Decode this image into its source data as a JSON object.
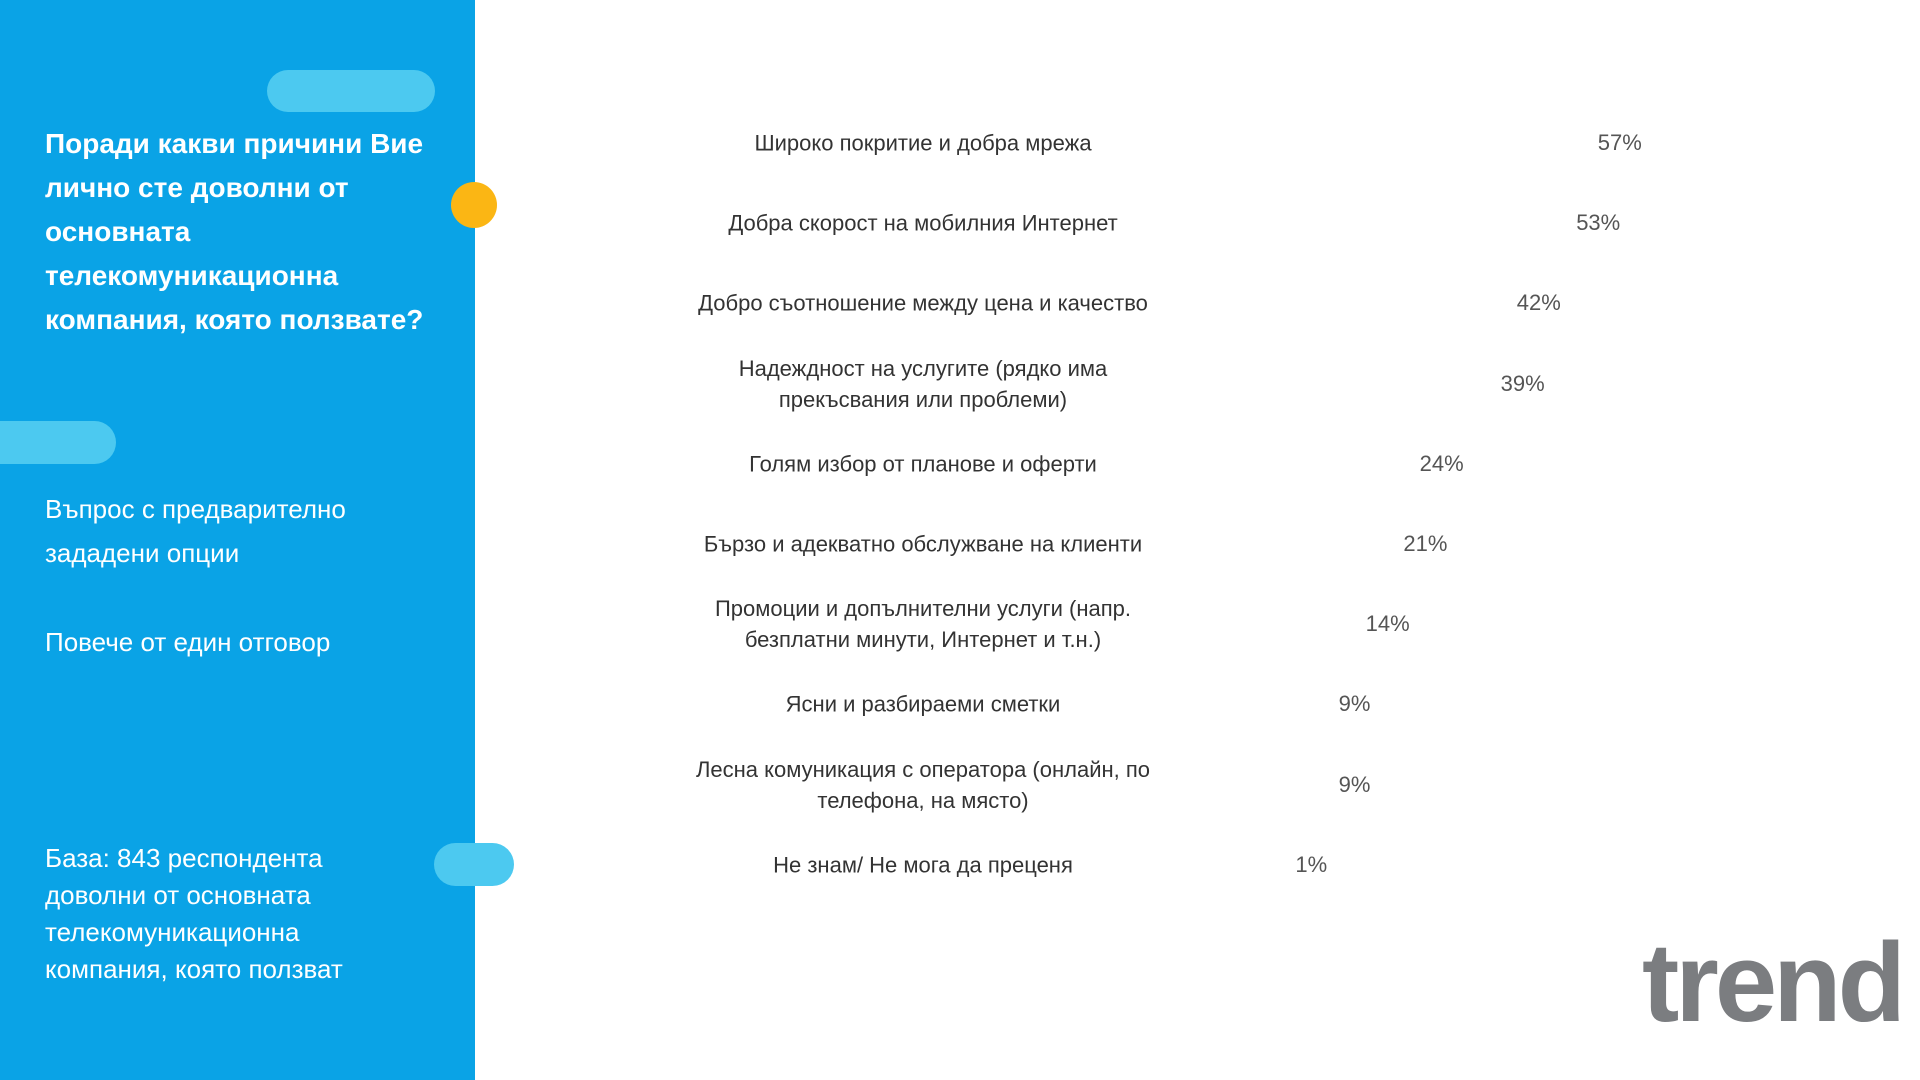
{
  "sidebar": {
    "question": "Поради какви причини Вие лично сте доволни от основната телекомуникационна компания, която ползвате?",
    "note1": "Въпрос с предварително зададени опции",
    "note2": "Повече от един отговор",
    "base": "База:  843 респондента доволни от основната телекомуникационна компания, която ползват"
  },
  "logo": "trend",
  "chart_data": {
    "type": "bar",
    "orientation": "horizontal",
    "color": "#2fb2e2",
    "categories": [
      "Широко покритие и добра мрежа",
      "Добра скорост на мобилния Интернет",
      "Добро съотношение между цена и качество",
      "Надеждност на услугите (рядко има прекъсвания или проблеми)",
      "Голям избор от планове и оферти",
      "Бързо и адекватно обслужване на клиенти",
      "Промоции и допълнителни услуги (напр. безплатни минути, Интернет и т.н.)",
      "Ясни и разбираеми сметки",
      "Лесна комуникация с оператора (онлайн, по телефона, на място)",
      "Не знам/ Не мога да преценя"
    ],
    "values": [
      57,
      53,
      42,
      39,
      24,
      21,
      14,
      9,
      9,
      1
    ],
    "value_labels": [
      "57%",
      "53%",
      "42%",
      "39%",
      "24%",
      "21%",
      "14%",
      "9%",
      "9%",
      "1%"
    ]
  }
}
